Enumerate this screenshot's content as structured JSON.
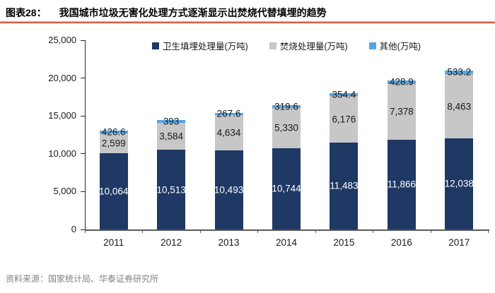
{
  "header": {
    "figure_label": "图表28：",
    "title": "我国城市垃圾无害化处理方式逐渐显示出焚烧代替填埋的趋势"
  },
  "chart_data": {
    "type": "bar",
    "subtype": "stacked-column",
    "categories": [
      "2011",
      "2012",
      "2013",
      "2014",
      "2015",
      "2016",
      "2017"
    ],
    "series": [
      {
        "name": "卫生填埋处理量(万吨)",
        "color": "#1F3864",
        "label_color": "#FFFFFF",
        "values": [
          10064,
          10513,
          10493,
          10744,
          11483,
          11866,
          12038
        ],
        "labels": [
          "10,064",
          "10,513",
          "10,493",
          "10,744",
          "11,483",
          "11,866",
          "12,038"
        ]
      },
      {
        "name": "焚烧处理量(万吨)",
        "color": "#C7C7C7",
        "label_color": "#1a1a1a",
        "values": [
          2599,
          3584,
          4634,
          5330,
          6176,
          7378,
          8463
        ],
        "labels": [
          "2,599",
          "3,584",
          "4,634",
          "5,330",
          "6,176",
          "7,378",
          "8,463"
        ]
      },
      {
        "name": "其他(万吨)",
        "color": "#54A5E6",
        "label_color": "#1a1a1a",
        "values": [
          426.6,
          393,
          267.6,
          319.6,
          354.4,
          428.9,
          533.2
        ],
        "labels": [
          "426.6",
          "393",
          "267.6",
          "319.6",
          "354.4",
          "428.9",
          "533.2"
        ]
      }
    ],
    "ylim": [
      0,
      25000
    ],
    "ytick_values": [
      0,
      5000,
      10000,
      15000,
      20000,
      25000
    ],
    "ytick_labels": [
      "0",
      "5,000",
      "10,000",
      "15,000",
      "20,000",
      "25,000"
    ],
    "legend_position": "top",
    "grid": false
  },
  "footer": {
    "source": "资料来源：国家统计局、华泰证券研究所"
  }
}
